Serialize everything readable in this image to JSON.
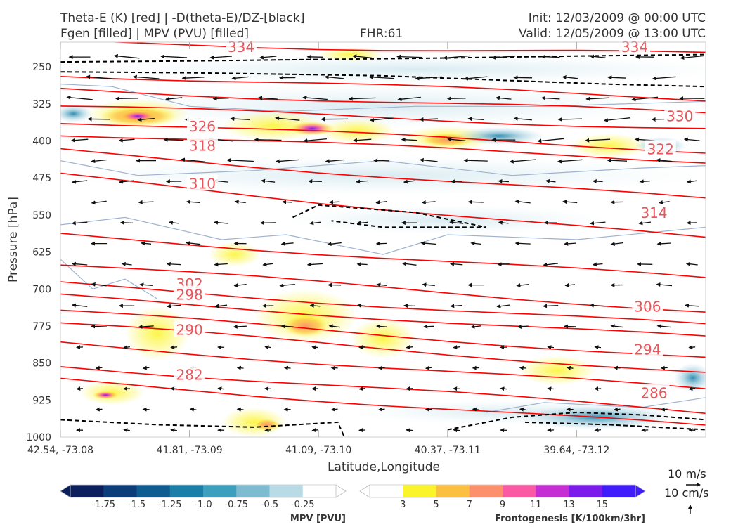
{
  "header": {
    "title_line1": "Theta-E (K) [red] | -D(theta-E)/DZ-[black]",
    "title_line2": "Fgen [filled] | MPV (PVU) [filled]",
    "fhr": "FHR:61",
    "init": "Init: 12/03/2009 @ 00:00 UTC",
    "valid": "Valid: 12/05/2009 @ 13:00 UTC"
  },
  "chart_data": {
    "type": "cross-section",
    "xlabel": "Latitude,Longitude",
    "ylabel": "Pressure [hPa]",
    "x_ticks": [
      "42.54, -73.08",
      "41.81, -73.09",
      "41.09, -73.10",
      "40.37, -73.11",
      "39.64, -73.12"
    ],
    "y_ticks": [
      250,
      325,
      400,
      475,
      550,
      625,
      700,
      775,
      850,
      925,
      1000
    ],
    "ylim": [
      1000,
      200
    ],
    "y_inverted": true,
    "theta_e_contours": {
      "color": "#ff0000",
      "labels": [
        {
          "value": "334",
          "x": 0.28,
          "p": 210
        },
        {
          "value": "334",
          "x": 0.89,
          "p": 210
        },
        {
          "value": "330",
          "x": 0.96,
          "p": 350
        },
        {
          "value": "326",
          "x": 0.22,
          "p": 371
        },
        {
          "value": "322",
          "x": 0.93,
          "p": 417
        },
        {
          "value": "318",
          "x": 0.22,
          "p": 410
        },
        {
          "value": "314",
          "x": 0.92,
          "p": 546
        },
        {
          "value": "310",
          "x": 0.22,
          "p": 487
        },
        {
          "value": "306",
          "x": 0.91,
          "p": 736
        },
        {
          "value": "302",
          "x": 0.2,
          "p": 690
        },
        {
          "value": "298",
          "x": 0.2,
          "p": 712
        },
        {
          "value": "294",
          "x": 0.91,
          "p": 823
        },
        {
          "value": "290",
          "x": 0.2,
          "p": 783
        },
        {
          "value": "286",
          "x": 0.92,
          "p": 911
        },
        {
          "value": "282",
          "x": 0.2,
          "p": 874
        }
      ]
    },
    "neg_dthetae_dz_contours": {
      "color": "#000000",
      "style": "dashed"
    },
    "mpv_colorbar": {
      "label": "MPV [PVU]",
      "ticks": [
        "-1.75",
        "-1.5",
        "-1.25",
        "-1.0",
        "-0.75",
        "-0.5",
        "-0.25"
      ],
      "colors": [
        "#0b1f5c",
        "#0d3c7a",
        "#0f5c91",
        "#1a7fa6",
        "#3b9fbd",
        "#7dbbd1",
        "#b9dbe6",
        "#ffffff"
      ]
    },
    "fgen_colorbar": {
      "label": "Frontogenesis [K/100km/3hr]",
      "ticks": [
        "3",
        "5",
        "7",
        "9",
        "11",
        "13",
        "15"
      ],
      "colors": [
        "#ffffff",
        "#fcf42a",
        "#fcc040",
        "#fc8f6c",
        "#f95aa3",
        "#c42ed2",
        "#7b1cec",
        "#3f1cf9"
      ]
    },
    "vector_key": {
      "horizontal": "10 m/s",
      "vertical": "10 cm/s"
    }
  }
}
